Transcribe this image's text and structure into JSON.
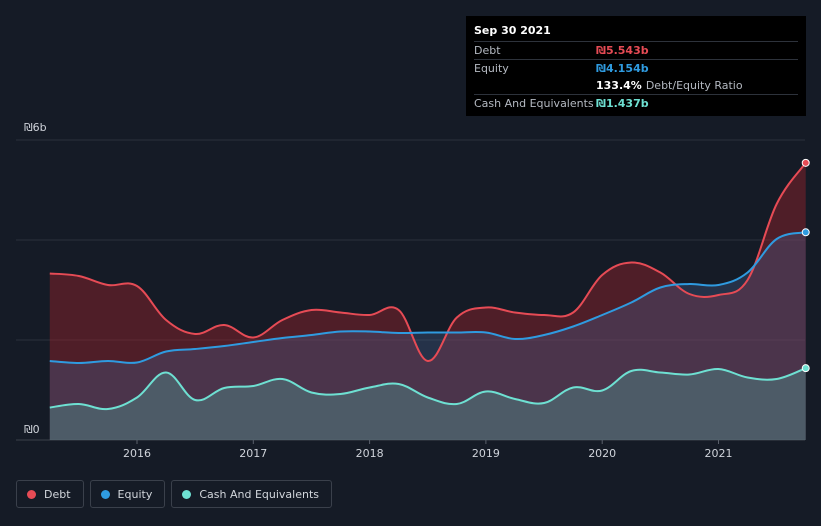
{
  "tooltip": {
    "date": "Sep 30 2021",
    "debt_label": "Debt",
    "debt_value": "₪5.543b",
    "equity_label": "Equity",
    "equity_value": "₪4.154b",
    "ratio_value": "133.4%",
    "ratio_label": "Debt/Equity Ratio",
    "cash_label": "Cash And Equivalents",
    "cash_value": "₪1.437b"
  },
  "legend": {
    "debt": "Debt",
    "equity": "Equity",
    "cash": "Cash And Equivalents"
  },
  "colors": {
    "debt": "#e64b55",
    "equity": "#2f9be0",
    "cash": "#6ee0d2",
    "background": "#151b26"
  },
  "chart_data": {
    "type": "area",
    "title": "",
    "xlabel": "",
    "ylabel": "",
    "y_unit": "₪b",
    "ylim": [
      0,
      6
    ],
    "y_ticks": [
      0,
      6
    ],
    "y_tick_labels": [
      "₪0",
      "₪6b"
    ],
    "x_ticks": [
      2016,
      2017,
      2018,
      2019,
      2020,
      2021
    ],
    "x_tick_labels": [
      "2016",
      "2017",
      "2018",
      "2019",
      "2020",
      "2021"
    ],
    "xlim": [
      2015.1,
      2021.75
    ],
    "grid": true,
    "legend_position": "bottom-left",
    "series": [
      {
        "name": "Debt",
        "x": [
          2015.25,
          2015.5,
          2015.75,
          2016.0,
          2016.25,
          2016.5,
          2016.75,
          2017.0,
          2017.25,
          2017.5,
          2017.75,
          2018.0,
          2018.25,
          2018.5,
          2018.75,
          2019.0,
          2019.25,
          2019.5,
          2019.75,
          2020.0,
          2020.25,
          2020.5,
          2020.75,
          2021.0,
          2021.25,
          2021.5,
          2021.75
        ],
        "values": [
          3.33,
          3.28,
          3.1,
          3.08,
          2.4,
          2.12,
          2.3,
          2.05,
          2.4,
          2.6,
          2.55,
          2.5,
          2.6,
          1.58,
          2.45,
          2.65,
          2.55,
          2.5,
          2.55,
          3.3,
          3.55,
          3.35,
          2.92,
          2.9,
          3.2,
          4.72,
          5.543
        ]
      },
      {
        "name": "Equity",
        "x": [
          2015.25,
          2015.5,
          2015.75,
          2016.0,
          2016.25,
          2016.5,
          2016.75,
          2017.0,
          2017.25,
          2017.5,
          2017.75,
          2018.0,
          2018.25,
          2018.5,
          2018.75,
          2019.0,
          2019.25,
          2019.5,
          2019.75,
          2020.0,
          2020.25,
          2020.5,
          2020.75,
          2021.0,
          2021.25,
          2021.5,
          2021.75
        ],
        "values": [
          1.58,
          1.54,
          1.58,
          1.55,
          1.77,
          1.82,
          1.88,
          1.96,
          2.04,
          2.1,
          2.17,
          2.17,
          2.14,
          2.15,
          2.15,
          2.15,
          2.02,
          2.1,
          2.27,
          2.5,
          2.75,
          3.05,
          3.12,
          3.1,
          3.35,
          4.02,
          4.154
        ]
      },
      {
        "name": "Cash And Equivalents",
        "x": [
          2015.25,
          2015.5,
          2015.75,
          2016.0,
          2016.25,
          2016.5,
          2016.75,
          2017.0,
          2017.25,
          2017.5,
          2017.75,
          2018.0,
          2018.25,
          2018.5,
          2018.75,
          2019.0,
          2019.25,
          2019.5,
          2019.75,
          2020.0,
          2020.25,
          2020.5,
          2020.75,
          2021.0,
          2021.25,
          2021.5,
          2021.75
        ],
        "values": [
          0.65,
          0.72,
          0.62,
          0.85,
          1.35,
          0.8,
          1.04,
          1.08,
          1.22,
          0.95,
          0.92,
          1.05,
          1.12,
          0.85,
          0.72,
          0.97,
          0.82,
          0.74,
          1.05,
          0.99,
          1.38,
          1.35,
          1.31,
          1.42,
          1.25,
          1.22,
          1.437
        ]
      }
    ]
  }
}
